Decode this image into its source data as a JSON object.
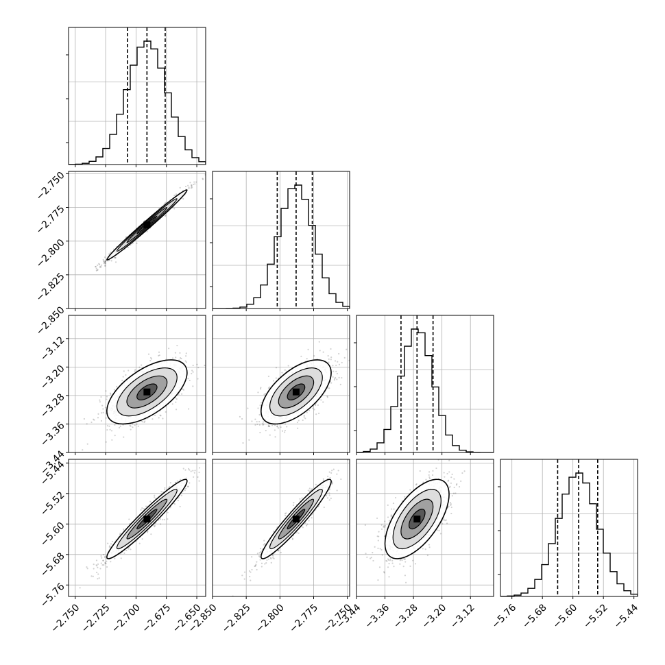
{
  "chart_data": {
    "type": "corner",
    "n_params": 4,
    "params": [
      {
        "range": [
          -2.7555,
          -2.6427
        ],
        "ticks": [
          -2.75,
          -2.725,
          -2.7,
          -2.675,
          -2.65
        ],
        "tick_labels": [
          "−2.750",
          "−2.725",
          "−2.700",
          "−2.675",
          "−2.650"
        ],
        "quantiles": [
          -2.707,
          -2.691,
          -2.676
        ],
        "mean": -2.691,
        "std": 0.0165
      },
      {
        "range": [
          -2.85,
          -2.7483
        ],
        "ticks": [
          -2.85,
          -2.825,
          -2.8,
          -2.775,
          -2.75
        ],
        "tick_labels": [
          "−2.850",
          "−2.825",
          "−2.800",
          "−2.775",
          "−2.750"
        ],
        "quantiles": [
          -2.802,
          -2.788,
          -2.776
        ],
        "mean": -2.788,
        "std": 0.013
      },
      {
        "range": [
          -3.44,
          -3.0549
        ],
        "ticks": [
          -3.44,
          -3.36,
          -3.28,
          -3.2,
          -3.12
        ],
        "tick_labels": [
          "−3.44",
          "−3.36",
          "−3.28",
          "−3.20",
          "−3.12"
        ],
        "quantiles": [
          -3.315,
          -3.27,
          -3.225
        ],
        "mean": -3.27,
        "std": 0.045
      },
      {
        "range": [
          -5.79,
          -5.4304
        ],
        "ticks": [
          -5.76,
          -5.68,
          -5.6,
          -5.52,
          -5.44
        ],
        "tick_labels": [
          "−5.76",
          "−5.68",
          "−5.60",
          "−5.52",
          "−5.44"
        ],
        "quantiles": [
          -5.64,
          -5.585,
          -5.535
        ],
        "mean": -5.587,
        "std": 0.052
      }
    ],
    "correlations": [
      [
        1.0,
        0.99,
        0.6,
        0.96
      ],
      [
        0.99,
        1.0,
        0.6,
        0.95
      ],
      [
        0.6,
        0.6,
        1.0,
        0.62
      ],
      [
        0.96,
        0.95,
        0.62,
        1.0
      ]
    ],
    "contour_levels": [
      0.5,
      1.0,
      1.5
    ],
    "histogram_bins": 20,
    "grid": true
  }
}
